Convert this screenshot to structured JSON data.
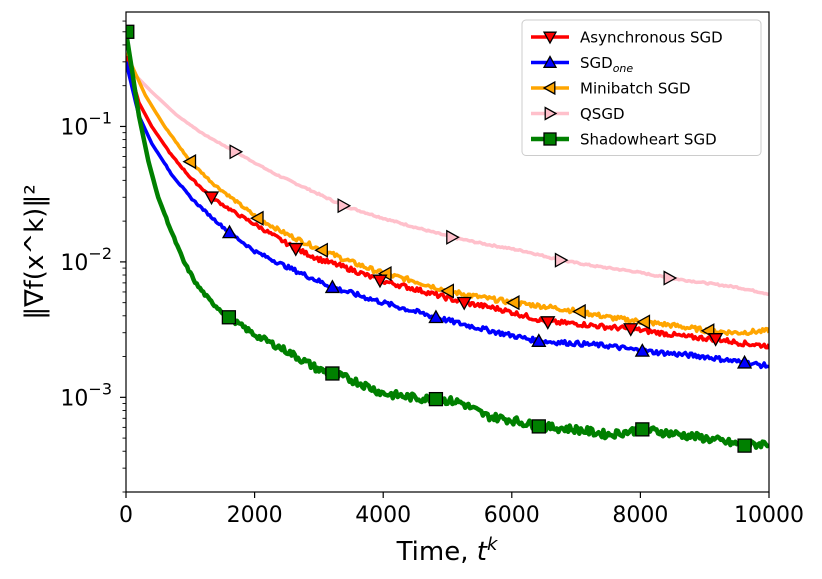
{
  "chart_data": {
    "type": "line",
    "xlabel": "Time, ",
    "xlabel_sup": "k",
    "xlabel_var": "t",
    "ylabel": "‖∇f(x^k)‖²",
    "y_scale": "log",
    "xlim": [
      0,
      10000
    ],
    "ylim": [
      0.0002,
      0.7
    ],
    "x_ticks": [
      0,
      2000,
      4000,
      6000,
      8000,
      10000
    ],
    "x_tick_labels": [
      "0",
      "2000",
      "4000",
      "6000",
      "8000",
      "10000"
    ],
    "y_ticks": [
      0.001,
      0.01,
      0.1
    ],
    "y_tick_labels": [
      {
        "base": "10",
        "exp": "−3"
      },
      {
        "base": "10",
        "exp": "−2"
      },
      {
        "base": "10",
        "exp": "−1"
      }
    ],
    "grid": false,
    "legend_position": "top-right",
    "series": [
      {
        "name": "Asynchronous SGD",
        "color": "#ff0000",
        "marker": "triangle-down",
        "x": [
          0,
          200,
          400,
          700,
          1000,
          1330,
          1700,
          2000,
          2640,
          3000,
          3500,
          3950,
          4500,
          5260,
          5800,
          6560,
          7000,
          7500,
          7850,
          8300,
          8700,
          9170,
          9600,
          10000
        ],
        "y": [
          0.33,
          0.15,
          0.1,
          0.062,
          0.042,
          0.03,
          0.023,
          0.019,
          0.0125,
          0.0105,
          0.0088,
          0.0073,
          0.0063,
          0.005,
          0.0045,
          0.0036,
          0.0035,
          0.0033,
          0.0032,
          0.003,
          0.0028,
          0.0027,
          0.0025,
          0.0024
        ]
      },
      {
        "name": "SGD",
        "name_sub": "one",
        "color": "#0000ff",
        "marker": "triangle-up",
        "x": [
          0,
          200,
          400,
          700,
          1000,
          1300,
          1610,
          2000,
          2500,
          3210,
          3600,
          4000,
          4820,
          5200,
          5800,
          6420,
          7000,
          7500,
          8030,
          8500,
          9000,
          9620,
          10000
        ],
        "y": [
          0.3,
          0.12,
          0.075,
          0.045,
          0.03,
          0.022,
          0.0165,
          0.012,
          0.0092,
          0.0065,
          0.0057,
          0.005,
          0.0039,
          0.0035,
          0.003,
          0.0026,
          0.0025,
          0.0024,
          0.0022,
          0.0021,
          0.002,
          0.0018,
          0.0017
        ]
      },
      {
        "name": "Minibatch SGD",
        "color": "#ffa500",
        "marker": "triangle-left",
        "x": [
          0,
          300,
          600,
          1000,
          1350,
          2050,
          2500,
          3050,
          3500,
          4000,
          4500,
          5010,
          5500,
          6030,
          6500,
          7060,
          7500,
          8060,
          8500,
          9060,
          9500,
          10000
        ],
        "y": [
          0.35,
          0.17,
          0.1,
          0.055,
          0.038,
          0.021,
          0.016,
          0.0122,
          0.01,
          0.0082,
          0.0072,
          0.0061,
          0.0055,
          0.005,
          0.0047,
          0.0043,
          0.0039,
          0.0036,
          0.0034,
          0.0031,
          0.003,
          0.0031
        ]
      },
      {
        "name": "QSGD",
        "color": "#ffc0cb",
        "marker": "triangle-right",
        "x": [
          0,
          400,
          800,
          1200,
          1700,
          2300,
          2800,
          3380,
          4000,
          4500,
          5070,
          5600,
          6200,
          6760,
          7300,
          7900,
          8450,
          9000,
          9500,
          10000
        ],
        "y": [
          0.28,
          0.18,
          0.12,
          0.088,
          0.065,
          0.045,
          0.035,
          0.026,
          0.021,
          0.018,
          0.0152,
          0.0135,
          0.012,
          0.0103,
          0.0093,
          0.0085,
          0.0076,
          0.007,
          0.0065,
          0.0058
        ]
      },
      {
        "name": "Shadowheart SGD",
        "color": "#008000",
        "marker": "square",
        "x": [
          0,
          100,
          200,
          350,
          500,
          700,
          900,
          1100,
          1300,
          1600,
          2000,
          2500,
          3000,
          3210,
          3600,
          4000,
          4500,
          4820,
          5200,
          5600,
          6000,
          6420,
          7000,
          7500,
          8030,
          8500,
          9000,
          9620,
          10000
        ],
        "y": [
          0.5,
          0.25,
          0.12,
          0.055,
          0.03,
          0.017,
          0.01,
          0.0068,
          0.0052,
          0.0039,
          0.0029,
          0.0022,
          0.0016,
          0.0015,
          0.0013,
          0.00107,
          0.00099,
          0.00097,
          0.00092,
          0.00073,
          0.00068,
          0.00061,
          0.00058,
          0.00053,
          0.00058,
          0.00054,
          0.0005,
          0.00044,
          0.00046
        ]
      }
    ],
    "markers": {
      "Asynchronous SGD": [
        [
          1330,
          0.03
        ],
        [
          2640,
          0.0125
        ],
        [
          3950,
          0.0073
        ],
        [
          5260,
          0.005
        ],
        [
          6560,
          0.0036
        ],
        [
          7850,
          0.0032
        ],
        [
          9170,
          0.0027
        ]
      ],
      "SGD": [
        [
          1610,
          0.0165
        ],
        [
          3210,
          0.0065
        ],
        [
          4820,
          0.0039
        ],
        [
          6420,
          0.0026
        ],
        [
          8030,
          0.0022
        ],
        [
          9620,
          0.0018
        ]
      ],
      "Minibatch SGD": [
        [
          1000,
          0.055
        ],
        [
          2050,
          0.021
        ],
        [
          3050,
          0.0122
        ],
        [
          4040,
          0.0082
        ],
        [
          5010,
          0.0061
        ],
        [
          6030,
          0.005
        ],
        [
          7060,
          0.0043
        ],
        [
          8060,
          0.0036
        ],
        [
          9060,
          0.0031
        ]
      ],
      "QSGD": [
        [
          1700,
          0.065
        ],
        [
          3380,
          0.026
        ],
        [
          5070,
          0.0152
        ],
        [
          6760,
          0.0103
        ],
        [
          8450,
          0.0076
        ]
      ],
      "Shadowheart SGD": [
        [
          20,
          0.5
        ],
        [
          1600,
          0.0039
        ],
        [
          3210,
          0.0015
        ],
        [
          4820,
          0.00097
        ],
        [
          6420,
          0.00061
        ],
        [
          8030,
          0.00058
        ],
        [
          9620,
          0.00044
        ]
      ]
    }
  }
}
